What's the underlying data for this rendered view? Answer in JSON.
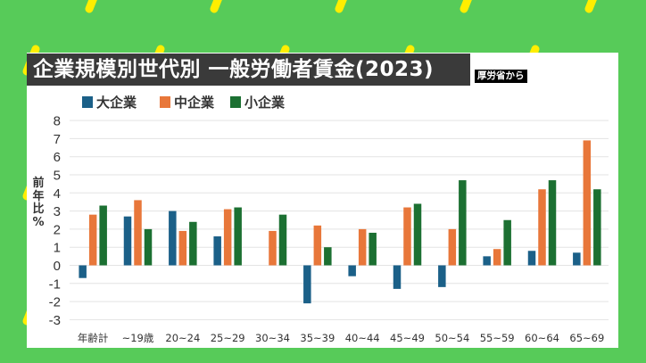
{
  "header": {
    "title": "企業規模別世代別 一般労働者賃金(2023)",
    "source_badge": "厚労省から"
  },
  "colors": {
    "background": "#57cb59",
    "stripe": "#ffee00",
    "title_bar": "#3a3a3a",
    "large": "#1b6088",
    "medium": "#e8773a",
    "small": "#1c7032"
  },
  "legend": [
    {
      "label": "大企業",
      "color": "#1b6088"
    },
    {
      "label": "中企業",
      "color": "#e8773a"
    },
    {
      "label": "小企業",
      "color": "#1c7032"
    }
  ],
  "y_axis_label": "前年比%",
  "chart_data": {
    "type": "bar",
    "title": "企業規模別世代別 一般労働者賃金(2023)",
    "xlabel": "",
    "ylabel": "前年比%",
    "ylim": [
      -3,
      8
    ],
    "yticks": [
      8,
      7,
      6,
      5,
      4,
      3,
      2,
      1,
      0,
      -1,
      -2,
      -3
    ],
    "grid": true,
    "legend_position": "top",
    "categories": [
      "年齢計",
      "~19歳",
      "20~24",
      "25~29",
      "30~34",
      "35~39",
      "40~44",
      "45~49",
      "50~54",
      "55~59",
      "60~64",
      "65~69"
    ],
    "series": [
      {
        "name": "大企業",
        "color": "#1b6088",
        "values": [
          -0.7,
          2.7,
          3.0,
          1.6,
          0.0,
          -2.1,
          -0.6,
          -1.3,
          -1.2,
          0.5,
          0.8,
          0.7
        ]
      },
      {
        "name": "中企業",
        "color": "#e8773a",
        "values": [
          2.8,
          3.6,
          1.9,
          3.1,
          1.9,
          2.2,
          2.0,
          3.2,
          2.0,
          0.9,
          4.2,
          6.9
        ]
      },
      {
        "name": "小企業",
        "color": "#1c7032",
        "values": [
          3.3,
          2.0,
          2.4,
          3.2,
          2.8,
          1.0,
          1.8,
          3.4,
          4.7,
          2.5,
          4.7,
          4.2
        ]
      }
    ]
  }
}
